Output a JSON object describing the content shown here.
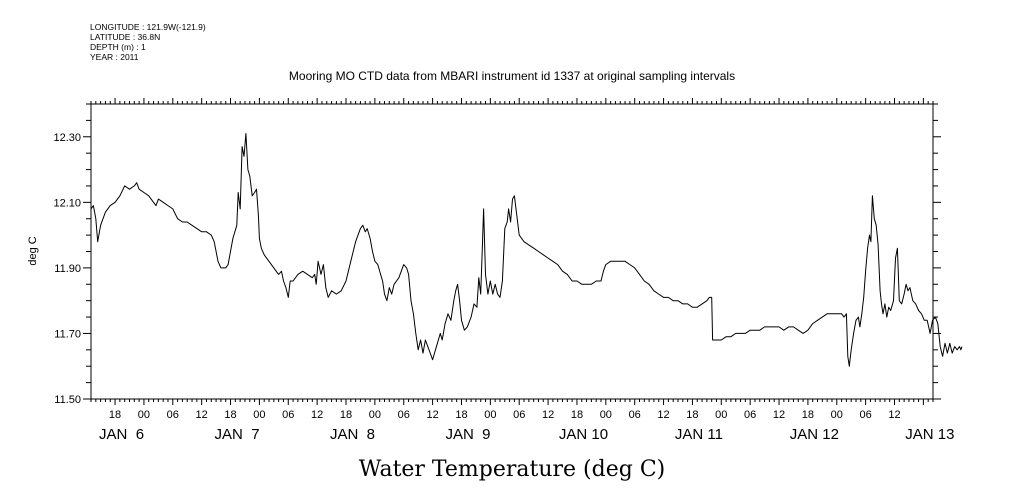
{
  "header": {
    "lines": [
      "LONGITUDE : 121.9W(-121.9)",
      "LATITUDE : 36.8N",
      "DEPTH (m) : 1",
      "YEAR : 2011"
    ]
  },
  "chart_data": {
    "type": "line",
    "title": "Mooring MO CTD data from MBARI instrument id 1337 at original sampling intervals",
    "xlabel": "Water Temperature (deg C)",
    "ylabel": "deg C",
    "ylim": [
      11.5,
      12.4
    ],
    "xlim": [
      13,
      188
    ],
    "yticks": [
      11.5,
      11.7,
      11.9,
      12.1,
      12.3
    ],
    "ytick_labels": [
      "11.50",
      "11.70",
      "11.90",
      "12.10",
      "12.30"
    ],
    "hour_ticks": [
      {
        "t": 18,
        "label": "18"
      },
      {
        "t": 24,
        "label": "00"
      },
      {
        "t": 30,
        "label": "06"
      },
      {
        "t": 36,
        "label": "12"
      },
      {
        "t": 42,
        "label": "18"
      },
      {
        "t": 48,
        "label": "00"
      },
      {
        "t": 54,
        "label": "06"
      },
      {
        "t": 60,
        "label": "12"
      },
      {
        "t": 66,
        "label": "18"
      },
      {
        "t": 72,
        "label": "00"
      },
      {
        "t": 78,
        "label": "06"
      },
      {
        "t": 84,
        "label": "12"
      },
      {
        "t": 90,
        "label": "18"
      },
      {
        "t": 96,
        "label": "00"
      },
      {
        "t": 102,
        "label": "06"
      },
      {
        "t": 108,
        "label": "12"
      },
      {
        "t": 114,
        "label": "18"
      },
      {
        "t": 120,
        "label": "00"
      },
      {
        "t": 126,
        "label": "06"
      },
      {
        "t": 132,
        "label": "12"
      },
      {
        "t": 138,
        "label": "18"
      },
      {
        "t": 144,
        "label": "00"
      },
      {
        "t": 150,
        "label": "06"
      },
      {
        "t": 156,
        "label": "12"
      },
      {
        "t": 162,
        "label": "18"
      },
      {
        "t": 168,
        "label": "00"
      },
      {
        "t": 174,
        "label": "06"
      },
      {
        "t": 180,
        "label": "12"
      }
    ],
    "day_labels": [
      {
        "t": 10,
        "label": "JAN  6"
      },
      {
        "t": 34,
        "label": "JAN  7"
      },
      {
        "t": 58,
        "label": "JAN  8"
      },
      {
        "t": 82,
        "label": "JAN  9"
      },
      {
        "t": 106,
        "label": "JAN 10"
      },
      {
        "t": 130,
        "label": "JAN 11"
      },
      {
        "t": 154,
        "label": "JAN 12"
      },
      {
        "t": 178,
        "label": "JAN 13"
      }
    ],
    "series": [
      {
        "color": "#000000",
        "points": [
          [
            13,
            12.08
          ],
          [
            13.5,
            12.09
          ],
          [
            14,
            12.05
          ],
          [
            14.4,
            11.98
          ],
          [
            15,
            12.03
          ],
          [
            16,
            12.07
          ],
          [
            17,
            12.09
          ],
          [
            18,
            12.1
          ],
          [
            19,
            12.12
          ],
          [
            20,
            12.15
          ],
          [
            21,
            12.14
          ],
          [
            22,
            12.15
          ],
          [
            22.5,
            12.16
          ],
          [
            23,
            12.14
          ],
          [
            24,
            12.13
          ],
          [
            25,
            12.12
          ],
          [
            26,
            12.1
          ],
          [
            26.5,
            12.09
          ],
          [
            27,
            12.11
          ],
          [
            28,
            12.1
          ],
          [
            29,
            12.09
          ],
          [
            30,
            12.08
          ],
          [
            31,
            12.05
          ],
          [
            32,
            12.04
          ],
          [
            33,
            12.04
          ],
          [
            34,
            12.03
          ],
          [
            35,
            12.02
          ],
          [
            36,
            12.01
          ],
          [
            37,
            12.01
          ],
          [
            38,
            12.0
          ],
          [
            38.6,
            11.98
          ],
          [
            39.4,
            11.92
          ],
          [
            40,
            11.9
          ],
          [
            41,
            11.9
          ],
          [
            41.5,
            11.91
          ],
          [
            42.5,
            11.99
          ],
          [
            43.3,
            12.03
          ],
          [
            43.6,
            12.13
          ],
          [
            44,
            12.08
          ],
          [
            44.4,
            12.27
          ],
          [
            44.8,
            12.24
          ],
          [
            45.2,
            12.31
          ],
          [
            45.6,
            12.2
          ],
          [
            46,
            12.18
          ],
          [
            46.5,
            12.12
          ],
          [
            47,
            12.13
          ],
          [
            47.4,
            12.14
          ],
          [
            47.8,
            12.06
          ],
          [
            48,
            11.99
          ],
          [
            48.4,
            11.96
          ],
          [
            49,
            11.94
          ],
          [
            50,
            11.92
          ],
          [
            51,
            11.9
          ],
          [
            52,
            11.88
          ],
          [
            52.6,
            11.89
          ],
          [
            53,
            11.86
          ],
          [
            53.5,
            11.84
          ],
          [
            54,
            11.81
          ],
          [
            54.4,
            11.86
          ],
          [
            55,
            11.86
          ],
          [
            56,
            11.88
          ],
          [
            57,
            11.89
          ],
          [
            58,
            11.88
          ],
          [
            59,
            11.87
          ],
          [
            59.5,
            11.88
          ],
          [
            59.8,
            11.85
          ],
          [
            60.2,
            11.92
          ],
          [
            60.8,
            11.88
          ],
          [
            61.3,
            11.91
          ],
          [
            61.8,
            11.84
          ],
          [
            62.3,
            11.81
          ],
          [
            63,
            11.83
          ],
          [
            64,
            11.82
          ],
          [
            65,
            11.83
          ],
          [
            66,
            11.86
          ],
          [
            67,
            11.92
          ],
          [
            68,
            11.98
          ],
          [
            69,
            12.02
          ],
          [
            69.5,
            12.03
          ],
          [
            70,
            12.01
          ],
          [
            70.4,
            12.02
          ],
          [
            71,
            11.99
          ],
          [
            71.5,
            11.95
          ],
          [
            72,
            11.92
          ],
          [
            72.6,
            11.91
          ],
          [
            73.2,
            11.88
          ],
          [
            73.6,
            11.86
          ],
          [
            74,
            11.82
          ],
          [
            74.5,
            11.8
          ],
          [
            75,
            11.84
          ],
          [
            75.5,
            11.82
          ],
          [
            76,
            11.85
          ],
          [
            77,
            11.87
          ],
          [
            78,
            11.91
          ],
          [
            78.6,
            11.9
          ],
          [
            79,
            11.88
          ],
          [
            79.5,
            11.8
          ],
          [
            80,
            11.76
          ],
          [
            80.5,
            11.7
          ],
          [
            81,
            11.65
          ],
          [
            81.5,
            11.68
          ],
          [
            82,
            11.64
          ],
          [
            82.5,
            11.68
          ],
          [
            83,
            11.66
          ],
          [
            83.5,
            11.64
          ],
          [
            84,
            11.62
          ],
          [
            84.4,
            11.64
          ],
          [
            85,
            11.67
          ],
          [
            85.6,
            11.7
          ],
          [
            86,
            11.68
          ],
          [
            86.6,
            11.73
          ],
          [
            87.2,
            11.76
          ],
          [
            87.8,
            11.74
          ],
          [
            88.4,
            11.8
          ],
          [
            88.8,
            11.83
          ],
          [
            89.2,
            11.85
          ],
          [
            89.6,
            11.8
          ],
          [
            90,
            11.74
          ],
          [
            90.6,
            11.71
          ],
          [
            91.2,
            11.72
          ],
          [
            92,
            11.75
          ],
          [
            92.6,
            11.79
          ],
          [
            93.2,
            11.78
          ],
          [
            93.6,
            11.87
          ],
          [
            94,
            11.82
          ],
          [
            94.3,
            11.95
          ],
          [
            94.6,
            12.08
          ],
          [
            95,
            11.88
          ],
          [
            95.5,
            11.82
          ],
          [
            96,
            11.86
          ],
          [
            96.5,
            11.82
          ],
          [
            97,
            11.85
          ],
          [
            97.5,
            11.82
          ],
          [
            98,
            11.81
          ],
          [
            98.5,
            11.86
          ],
          [
            99,
            12.02
          ],
          [
            99.5,
            12.04
          ],
          [
            99.8,
            12.08
          ],
          [
            100.2,
            12.04
          ],
          [
            100.6,
            12.11
          ],
          [
            101,
            12.12
          ],
          [
            101.5,
            12.06
          ],
          [
            102,
            12.0
          ],
          [
            103,
            11.98
          ],
          [
            104,
            11.97
          ],
          [
            105,
            11.96
          ],
          [
            106,
            11.95
          ],
          [
            107,
            11.94
          ],
          [
            108,
            11.93
          ],
          [
            109,
            11.92
          ],
          [
            110,
            11.91
          ],
          [
            111,
            11.89
          ],
          [
            112,
            11.88
          ],
          [
            113,
            11.86
          ],
          [
            114,
            11.86
          ],
          [
            115,
            11.85
          ],
          [
            116,
            11.85
          ],
          [
            117,
            11.85
          ],
          [
            118,
            11.86
          ],
          [
            119,
            11.86
          ],
          [
            119.5,
            11.89
          ],
          [
            120,
            11.91
          ],
          [
            121,
            11.92
          ],
          [
            122,
            11.92
          ],
          [
            123,
            11.92
          ],
          [
            124,
            11.92
          ],
          [
            125,
            11.91
          ],
          [
            126,
            11.9
          ],
          [
            127,
            11.88
          ],
          [
            128,
            11.86
          ],
          [
            129,
            11.85
          ],
          [
            130,
            11.83
          ],
          [
            131,
            11.82
          ],
          [
            132,
            11.81
          ],
          [
            133,
            11.81
          ],
          [
            134,
            11.8
          ],
          [
            135,
            11.8
          ],
          [
            136,
            11.79
          ],
          [
            137,
            11.79
          ],
          [
            138,
            11.78
          ],
          [
            139,
            11.78
          ],
          [
            140,
            11.79
          ],
          [
            141,
            11.8
          ],
          [
            141.5,
            11.81
          ],
          [
            142,
            11.81
          ],
          [
            142.2,
            11.68
          ],
          [
            143,
            11.68
          ],
          [
            144,
            11.68
          ],
          [
            145,
            11.69
          ],
          [
            146,
            11.69
          ],
          [
            147,
            11.7
          ],
          [
            148,
            11.7
          ],
          [
            149,
            11.7
          ],
          [
            150,
            11.71
          ],
          [
            151,
            11.71
          ],
          [
            152,
            11.71
          ],
          [
            153,
            11.72
          ],
          [
            154,
            11.72
          ],
          [
            155,
            11.72
          ],
          [
            156,
            11.72
          ],
          [
            157,
            11.71
          ],
          [
            158,
            11.72
          ],
          [
            159,
            11.72
          ],
          [
            160,
            11.71
          ],
          [
            161,
            11.7
          ],
          [
            162,
            11.71
          ],
          [
            163,
            11.73
          ],
          [
            164,
            11.74
          ],
          [
            165,
            11.75
          ],
          [
            166,
            11.76
          ],
          [
            167,
            11.76
          ],
          [
            168,
            11.76
          ],
          [
            169,
            11.76
          ],
          [
            169.5,
            11.75
          ],
          [
            170,
            11.76
          ],
          [
            170.3,
            11.63
          ],
          [
            170.6,
            11.6
          ],
          [
            171,
            11.65
          ],
          [
            171.5,
            11.7
          ],
          [
            172,
            11.74
          ],
          [
            172.5,
            11.75
          ],
          [
            172.8,
            11.72
          ],
          [
            173.2,
            11.76
          ],
          [
            173.6,
            11.81
          ],
          [
            174,
            11.89
          ],
          [
            174.4,
            11.96
          ],
          [
            174.8,
            12.0
          ],
          [
            175.1,
            11.98
          ],
          [
            175.4,
            12.12
          ],
          [
            175.8,
            12.05
          ],
          [
            176.2,
            12.03
          ],
          [
            176.6,
            11.97
          ],
          [
            177,
            11.83
          ],
          [
            177.3,
            11.79
          ],
          [
            177.6,
            11.76
          ],
          [
            178,
            11.79
          ],
          [
            178.4,
            11.75
          ],
          [
            178.8,
            11.78
          ],
          [
            179.2,
            11.77
          ],
          [
            179.8,
            11.8
          ],
          [
            180.2,
            11.93
          ],
          [
            180.6,
            11.96
          ],
          [
            181,
            11.8
          ],
          [
            181.5,
            11.79
          ],
          [
            182,
            11.82
          ],
          [
            182.4,
            11.85
          ],
          [
            182.8,
            11.83
          ],
          [
            183.2,
            11.84
          ],
          [
            183.8,
            11.8
          ],
          [
            184.4,
            11.79
          ],
          [
            185,
            11.77
          ],
          [
            185.6,
            11.76
          ],
          [
            186.2,
            11.74
          ],
          [
            186.8,
            11.74
          ],
          [
            187.4,
            11.7
          ],
          [
            187.9,
            11.74
          ],
          [
            188.5,
            11.75
          ],
          [
            189,
            11.73
          ],
          [
            189.5,
            11.66
          ],
          [
            190,
            11.63
          ],
          [
            190.5,
            11.67
          ],
          [
            191,
            11.64
          ],
          [
            191.5,
            11.67
          ],
          [
            192,
            11.64
          ],
          [
            192.5,
            11.66
          ],
          [
            193,
            11.65
          ],
          [
            193.5,
            11.66
          ],
          [
            193.8,
            11.65
          ],
          [
            194,
            11.66
          ]
        ]
      }
    ]
  }
}
